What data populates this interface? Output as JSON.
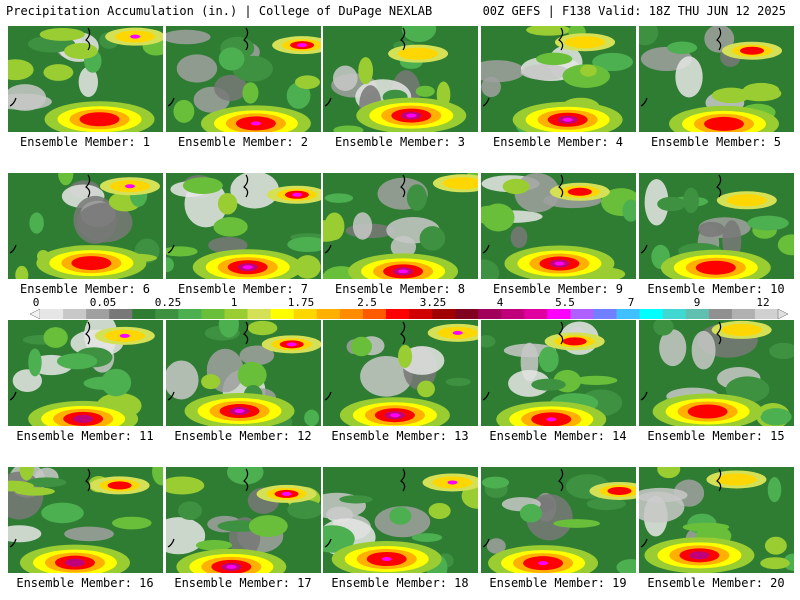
{
  "header": {
    "left": "Precipitation Accumulation (in.) | College of DuPage NEXLAB",
    "right": "00Z GEFS | F138 Valid: 18Z THU JUN 12 2025"
  },
  "panel_label_prefix": "Ensemble Member:",
  "members": [
    {
      "label": "Ensemble Member: 1"
    },
    {
      "label": "Ensemble Member: 2"
    },
    {
      "label": "Ensemble Member: 3"
    },
    {
      "label": "Ensemble Member: 4"
    },
    {
      "label": "Ensemble Member: 5"
    },
    {
      "label": "Ensemble Member: 6"
    },
    {
      "label": "Ensemble Member: 7"
    },
    {
      "label": "Ensemble Member: 8"
    },
    {
      "label": "Ensemble Member: 9"
    },
    {
      "label": "Ensemble Member: 10"
    },
    {
      "label": "Ensemble Member: 11"
    },
    {
      "label": "Ensemble Member: 12"
    },
    {
      "label": "Ensemble Member: 13"
    },
    {
      "label": "Ensemble Member: 14"
    },
    {
      "label": "Ensemble Member: 15"
    },
    {
      "label": "Ensemble Member: 16"
    },
    {
      "label": "Ensemble Member: 17"
    },
    {
      "label": "Ensemble Member: 18"
    },
    {
      "label": "Ensemble Member: 19"
    },
    {
      "label": "Ensemble Member: 20"
    }
  ],
  "colorbar": {
    "tick_labels": [
      "0",
      "0.05",
      "0.25",
      "1",
      "1.75",
      "2.5",
      "3.25",
      "4",
      "5.5",
      "7",
      "9",
      "12"
    ],
    "colors": [
      "#e6e6e6",
      "#c8c8c8",
      "#a0a0a0",
      "#787878",
      "#2e7d32",
      "#3d9140",
      "#4caf50",
      "#6abf3a",
      "#9acd32",
      "#d4e157",
      "#ffff00",
      "#ffd700",
      "#ffb000",
      "#ff8c00",
      "#ff5a00",
      "#ff0000",
      "#d00000",
      "#a00000",
      "#800020",
      "#a0005a",
      "#c0007a",
      "#e000a0",
      "#ff00ff",
      "#b060ff",
      "#7080ff",
      "#40c0ff",
      "#00ffff",
      "#40d8d0",
      "#60c0b0",
      "#909090",
      "#b0b0b0",
      "#d0d0d0"
    ]
  }
}
